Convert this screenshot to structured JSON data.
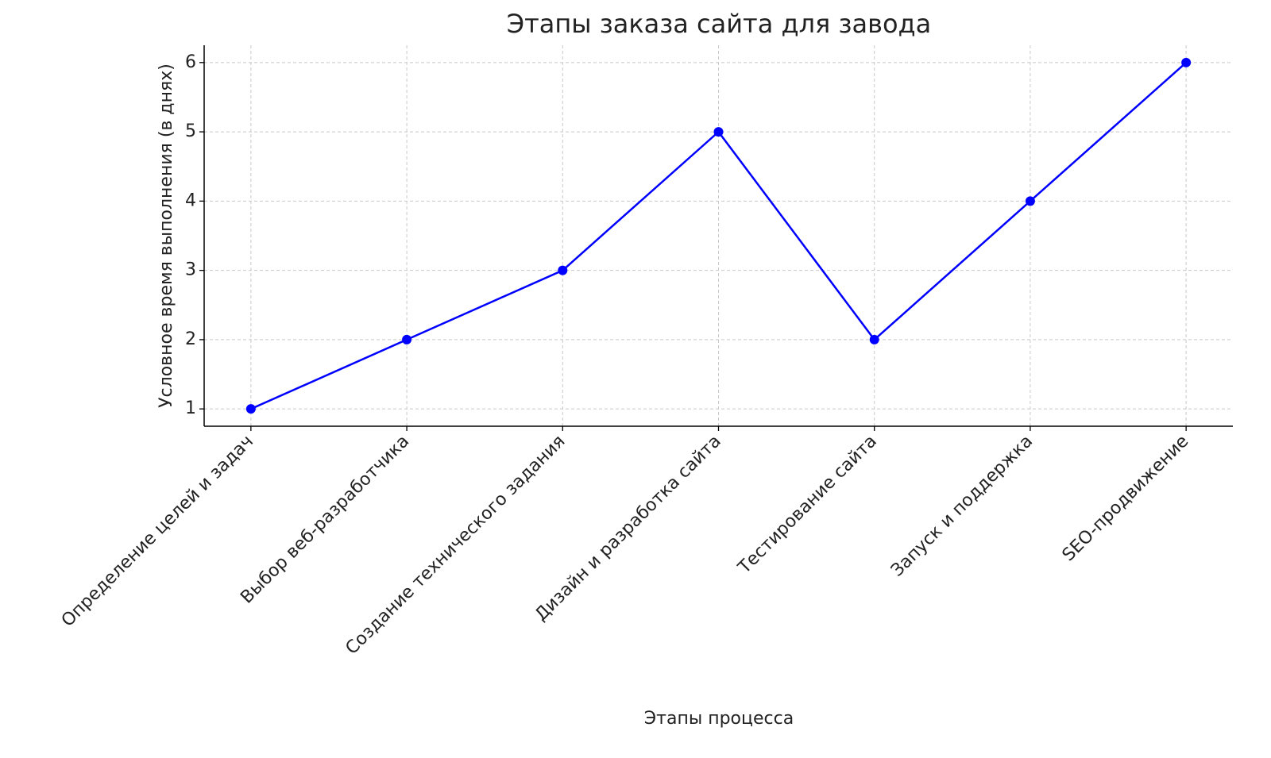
{
  "chart_data": {
    "type": "line",
    "title": "Этапы заказа сайта для завода",
    "x_label": "Этапы процесса",
    "y_label": "Условное время выполнения (в днях)",
    "categories": [
      "Определение целей и задач",
      "Выбор веб-разработчика",
      "Создание технического задания",
      "Дизайн и разработка сайта",
      "Тестирование сайта",
      "Запуск и поддержка",
      "SEO-продвижение"
    ],
    "series": [
      {
        "name": "Условное время выполнения (в днях)",
        "color": "#0000ff",
        "values": [
          1,
          2,
          3,
          5,
          2,
          4,
          6
        ]
      }
    ],
    "ylim": [
      0.75,
      6.25
    ],
    "yticks": [
      1,
      2,
      3,
      4,
      5,
      6
    ],
    "grid": true
  }
}
